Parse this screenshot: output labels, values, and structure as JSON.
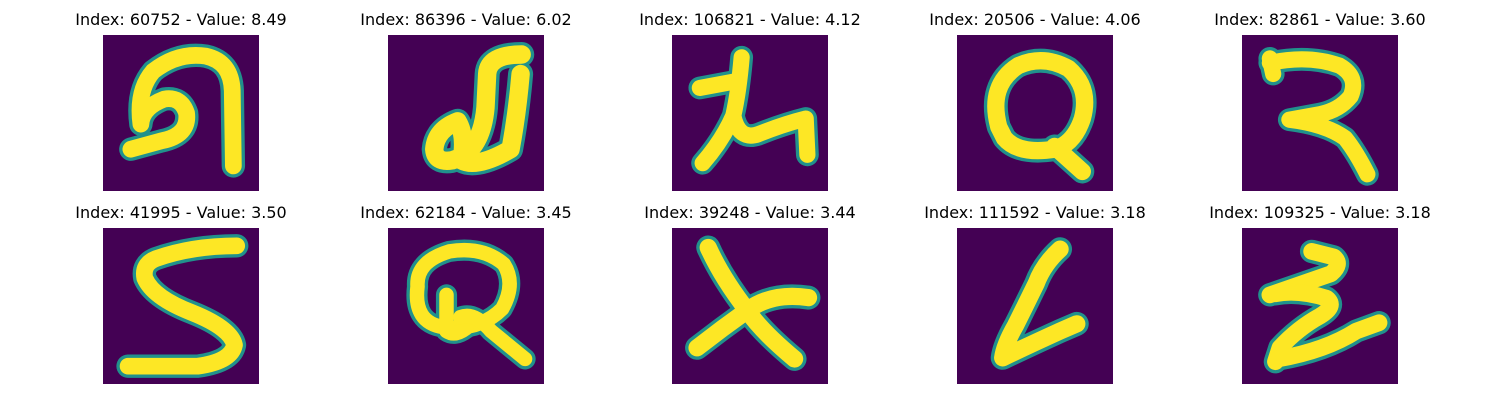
{
  "figure": {
    "colormap": {
      "background": "#440154",
      "mid": "#21918c",
      "high": "#fde725"
    },
    "panels": [
      {
        "title": "Index: 60752 - Value: 8.49",
        "glyph": "cursive-h-hook"
      },
      {
        "title": "Index: 86396 - Value: 6.02",
        "glyph": "cursive-j-loop"
      },
      {
        "title": "Index: 106821 - Value: 4.12",
        "glyph": "lambda-like"
      },
      {
        "title": "Index: 20506 - Value: 4.06",
        "glyph": "q-loop"
      },
      {
        "title": "Index: 82861 - Value: 3.60",
        "glyph": "cursive-2"
      },
      {
        "title": "Index: 41995 - Value: 3.50",
        "glyph": "digit-5"
      },
      {
        "title": "Index: 62184 - Value: 3.45",
        "glyph": "q-loop-scribble"
      },
      {
        "title": "Index: 39248 - Value: 3.44",
        "glyph": "x-cross"
      },
      {
        "title": "Index: 111592 - Value: 3.18",
        "glyph": "slanted-l"
      },
      {
        "title": "Index: 109325 - Value: 3.18",
        "glyph": "zigzag-z"
      }
    ]
  }
}
